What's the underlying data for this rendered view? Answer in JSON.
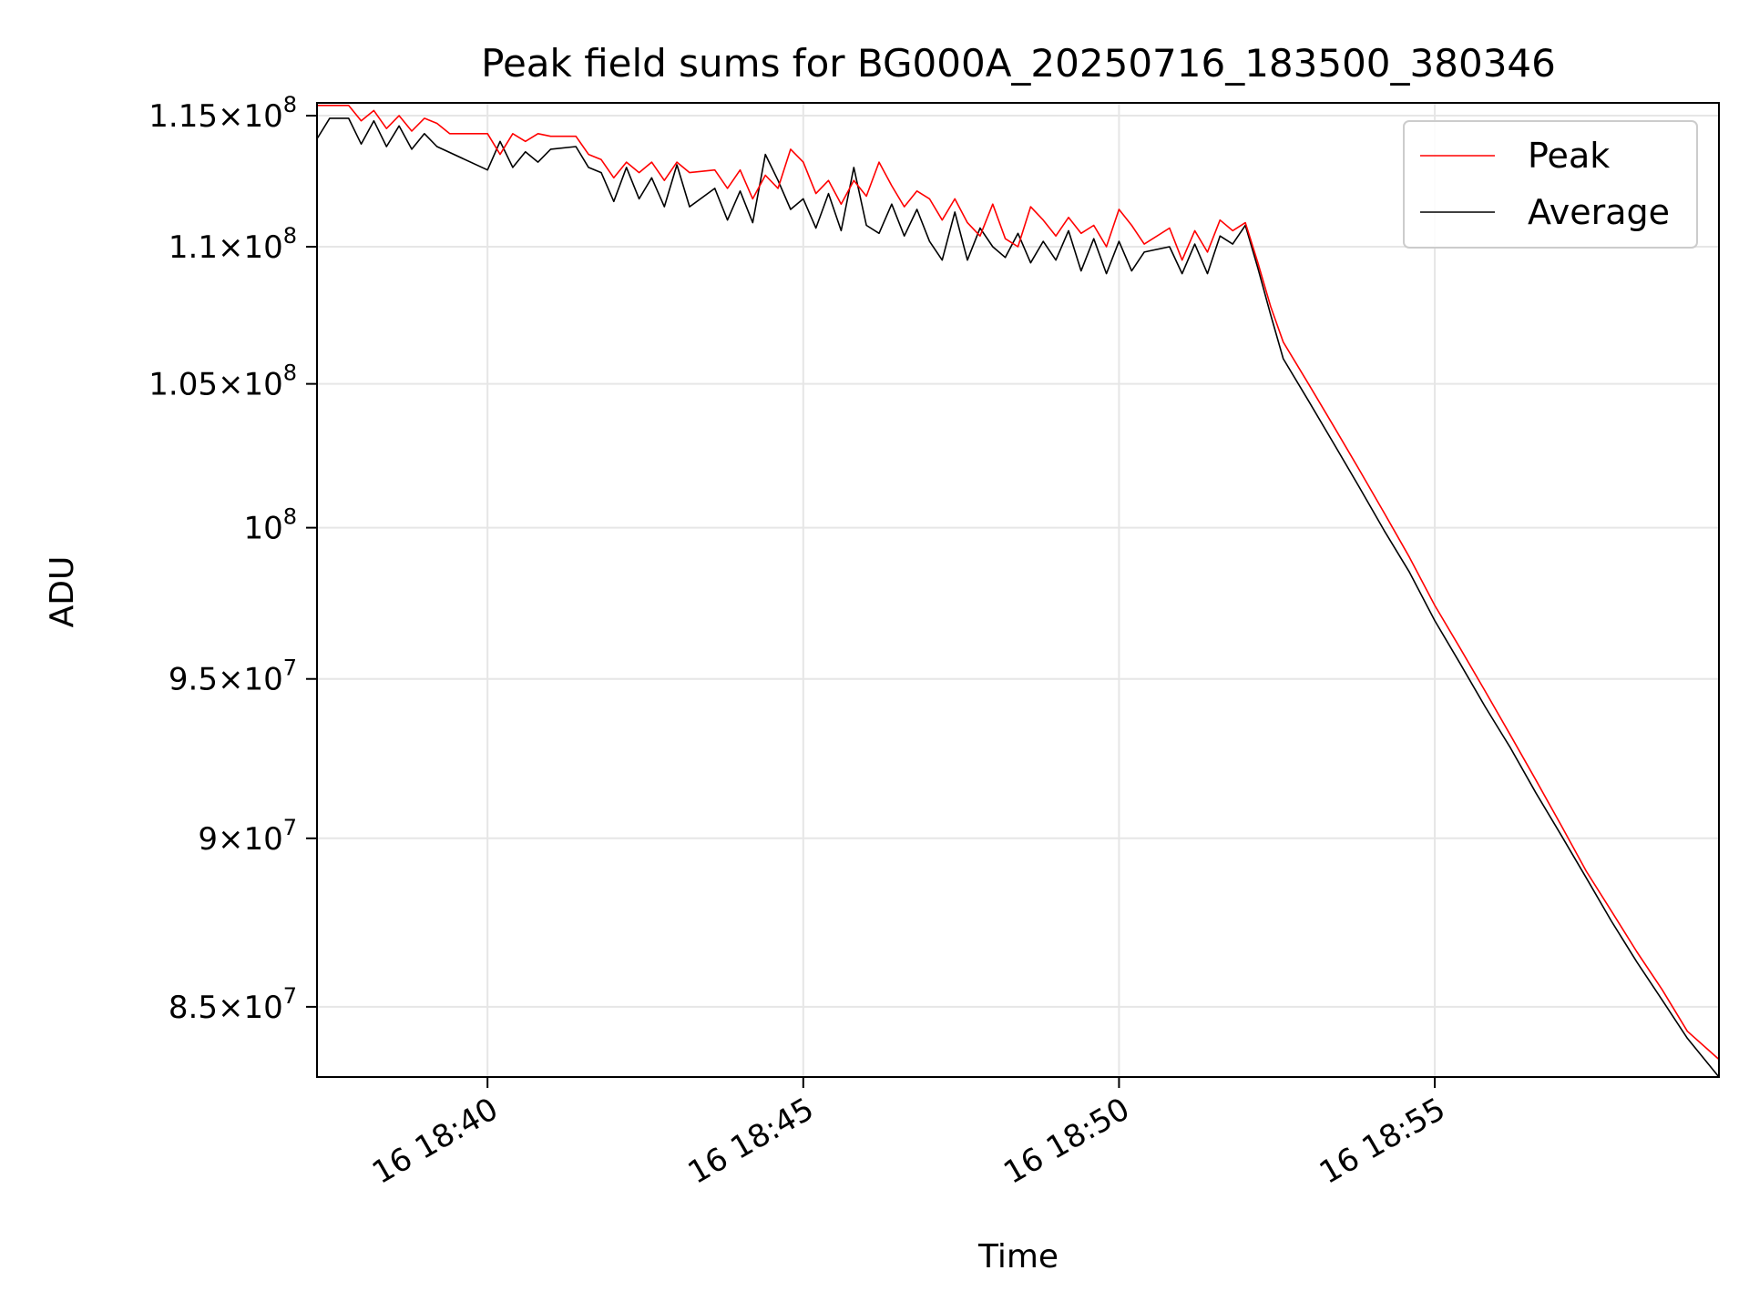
{
  "chart_data": {
    "type": "line",
    "title": "Peak field sums for BG000A_20250716_183500_380346",
    "xlabel": "Time",
    "ylabel": "ADU",
    "y_scale": "log",
    "xlim": [
      "2025-07-16 18:37:18",
      "2025-07-16 18:59:30"
    ],
    "ylim": [
      83000000,
      115500000
    ],
    "x_ticks": [
      {
        "value": "2025-07-16 18:40:00",
        "label": "16 18:40"
      },
      {
        "value": "2025-07-16 18:45:00",
        "label": "16 18:45"
      },
      {
        "value": "2025-07-16 18:50:00",
        "label": "16 18:50"
      },
      {
        "value": "2025-07-16 18:55:00",
        "label": "16 18:55"
      }
    ],
    "y_ticks": [
      {
        "value": 85000000,
        "mantissa": "8.5",
        "exponent": "7"
      },
      {
        "value": 90000000,
        "mantissa": "9",
        "exponent": "7"
      },
      {
        "value": 95000000,
        "mantissa": "9.5",
        "exponent": "7"
      },
      {
        "value": 100000000,
        "mantissa": "10",
        "exponent": "8"
      },
      {
        "value": 105000000,
        "mantissa": "1.05",
        "exponent": "8"
      },
      {
        "value": 110000000,
        "mantissa": "1.1",
        "exponent": "8"
      },
      {
        "value": 115000000,
        "mantissa": "1.15",
        "exponent": "8"
      }
    ],
    "grid": true,
    "legend_position": "top-right",
    "series": [
      {
        "name": "Peak",
        "color": "#ff0000",
        "x": [
          "2025-07-16 18:37:18",
          "2025-07-16 18:37:48",
          "2025-07-16 18:38:00",
          "2025-07-16 18:38:12",
          "2025-07-16 18:38:24",
          "2025-07-16 18:38:36",
          "2025-07-16 18:38:48",
          "2025-07-16 18:39:00",
          "2025-07-16 18:39:12",
          "2025-07-16 18:39:24",
          "2025-07-16 18:40:00",
          "2025-07-16 18:40:12",
          "2025-07-16 18:40:24",
          "2025-07-16 18:40:36",
          "2025-07-16 18:40:48",
          "2025-07-16 18:41:00",
          "2025-07-16 18:41:24",
          "2025-07-16 18:41:36",
          "2025-07-16 18:41:48",
          "2025-07-16 18:42:00",
          "2025-07-16 18:42:12",
          "2025-07-16 18:42:24",
          "2025-07-16 18:42:36",
          "2025-07-16 18:42:48",
          "2025-07-16 18:43:00",
          "2025-07-16 18:43:12",
          "2025-07-16 18:43:36",
          "2025-07-16 18:43:48",
          "2025-07-16 18:44:00",
          "2025-07-16 18:44:12",
          "2025-07-16 18:44:24",
          "2025-07-16 18:44:36",
          "2025-07-16 18:44:48",
          "2025-07-16 18:45:00",
          "2025-07-16 18:45:12",
          "2025-07-16 18:45:24",
          "2025-07-16 18:45:36",
          "2025-07-16 18:45:48",
          "2025-07-16 18:46:00",
          "2025-07-16 18:46:12",
          "2025-07-16 18:46:24",
          "2025-07-16 18:46:36",
          "2025-07-16 18:46:48",
          "2025-07-16 18:47:00",
          "2025-07-16 18:47:12",
          "2025-07-16 18:47:24",
          "2025-07-16 18:47:36",
          "2025-07-16 18:47:48",
          "2025-07-16 18:48:00",
          "2025-07-16 18:48:12",
          "2025-07-16 18:48:24",
          "2025-07-16 18:48:36",
          "2025-07-16 18:48:48",
          "2025-07-16 18:49:00",
          "2025-07-16 18:49:12",
          "2025-07-16 18:49:24",
          "2025-07-16 18:49:36",
          "2025-07-16 18:49:48",
          "2025-07-16 18:50:00",
          "2025-07-16 18:50:12",
          "2025-07-16 18:50:24",
          "2025-07-16 18:50:48",
          "2025-07-16 18:51:00",
          "2025-07-16 18:51:12",
          "2025-07-16 18:51:24",
          "2025-07-16 18:51:36",
          "2025-07-16 18:51:48",
          "2025-07-16 18:52:00",
          "2025-07-16 18:52:12",
          "2025-07-16 18:52:24",
          "2025-07-16 18:52:36",
          "2025-07-16 18:53:00",
          "2025-07-16 18:53:24",
          "2025-07-16 18:53:48",
          "2025-07-16 18:54:12",
          "2025-07-16 18:54:36",
          "2025-07-16 18:55:00",
          "2025-07-16 18:55:24",
          "2025-07-16 18:55:48",
          "2025-07-16 18:56:12",
          "2025-07-16 18:56:36",
          "2025-07-16 18:57:00",
          "2025-07-16 18:57:24",
          "2025-07-16 18:57:48",
          "2025-07-16 18:58:12",
          "2025-07-16 18:58:36",
          "2025-07-16 18:59:00",
          "2025-07-16 18:59:30"
        ],
        "y": [
          115400000,
          115400000,
          114800000,
          115200000,
          114500000,
          115000000,
          114400000,
          114900000,
          114700000,
          114300000,
          114300000,
          113500000,
          114300000,
          114000000,
          114300000,
          114200000,
          114200000,
          113500000,
          113300000,
          112600000,
          113200000,
          112800000,
          113200000,
          112500000,
          113200000,
          112800000,
          112900000,
          112200000,
          112900000,
          111800000,
          112700000,
          112200000,
          113700000,
          113200000,
          112000000,
          112500000,
          111600000,
          112500000,
          111900000,
          113200000,
          112300000,
          111500000,
          112100000,
          111800000,
          111000000,
          111800000,
          110900000,
          110400000,
          111600000,
          110300000,
          110000000,
          111500000,
          111000000,
          110400000,
          111100000,
          110500000,
          110800000,
          110000000,
          111400000,
          110800000,
          110100000,
          110700000,
          109500000,
          110600000,
          109800000,
          111000000,
          110600000,
          110900000,
          109400000,
          107800000,
          106500000,
          105000000,
          103500000,
          102000000,
          100500000,
          99000000,
          97400000,
          96000000,
          94600000,
          93200000,
          91800000,
          90400000,
          89000000,
          87800000,
          86600000,
          85500000,
          84300000,
          83500000
        ]
      },
      {
        "name": "Average",
        "color": "#000000",
        "x": [
          "2025-07-16 18:37:18",
          "2025-07-16 18:37:30",
          "2025-07-16 18:37:48",
          "2025-07-16 18:38:00",
          "2025-07-16 18:38:12",
          "2025-07-16 18:38:24",
          "2025-07-16 18:38:36",
          "2025-07-16 18:38:48",
          "2025-07-16 18:39:00",
          "2025-07-16 18:39:12",
          "2025-07-16 18:40:00",
          "2025-07-16 18:40:12",
          "2025-07-16 18:40:24",
          "2025-07-16 18:40:36",
          "2025-07-16 18:40:48",
          "2025-07-16 18:41:00",
          "2025-07-16 18:41:24",
          "2025-07-16 18:41:36",
          "2025-07-16 18:41:48",
          "2025-07-16 18:42:00",
          "2025-07-16 18:42:12",
          "2025-07-16 18:42:24",
          "2025-07-16 18:42:36",
          "2025-07-16 18:42:48",
          "2025-07-16 18:43:00",
          "2025-07-16 18:43:12",
          "2025-07-16 18:43:36",
          "2025-07-16 18:43:48",
          "2025-07-16 18:44:00",
          "2025-07-16 18:44:12",
          "2025-07-16 18:44:24",
          "2025-07-16 18:44:36",
          "2025-07-16 18:44:48",
          "2025-07-16 18:45:00",
          "2025-07-16 18:45:12",
          "2025-07-16 18:45:24",
          "2025-07-16 18:45:36",
          "2025-07-16 18:45:48",
          "2025-07-16 18:46:00",
          "2025-07-16 18:46:12",
          "2025-07-16 18:46:24",
          "2025-07-16 18:46:36",
          "2025-07-16 18:46:48",
          "2025-07-16 18:47:00",
          "2025-07-16 18:47:12",
          "2025-07-16 18:47:24",
          "2025-07-16 18:47:36",
          "2025-07-16 18:47:48",
          "2025-07-16 18:48:00",
          "2025-07-16 18:48:12",
          "2025-07-16 18:48:24",
          "2025-07-16 18:48:36",
          "2025-07-16 18:48:48",
          "2025-07-16 18:49:00",
          "2025-07-16 18:49:12",
          "2025-07-16 18:49:24",
          "2025-07-16 18:49:36",
          "2025-07-16 18:49:48",
          "2025-07-16 18:50:00",
          "2025-07-16 18:50:12",
          "2025-07-16 18:50:24",
          "2025-07-16 18:50:48",
          "2025-07-16 18:51:00",
          "2025-07-16 18:51:12",
          "2025-07-16 18:51:24",
          "2025-07-16 18:51:36",
          "2025-07-16 18:51:48",
          "2025-07-16 18:52:00",
          "2025-07-16 18:52:12",
          "2025-07-16 18:52:24",
          "2025-07-16 18:52:36",
          "2025-07-16 18:53:00",
          "2025-07-16 18:53:24",
          "2025-07-16 18:53:48",
          "2025-07-16 18:54:12",
          "2025-07-16 18:54:36",
          "2025-07-16 18:55:00",
          "2025-07-16 18:55:24",
          "2025-07-16 18:55:48",
          "2025-07-16 18:56:12",
          "2025-07-16 18:56:36",
          "2025-07-16 18:57:00",
          "2025-07-16 18:57:24",
          "2025-07-16 18:57:48",
          "2025-07-16 18:58:12",
          "2025-07-16 18:58:36",
          "2025-07-16 18:59:00",
          "2025-07-16 18:59:30"
        ],
        "y": [
          114100000,
          114900000,
          114900000,
          113900000,
          114800000,
          113800000,
          114600000,
          113700000,
          114300000,
          113800000,
          112900000,
          114000000,
          113000000,
          113600000,
          113200000,
          113700000,
          113800000,
          113000000,
          112800000,
          111700000,
          113000000,
          111800000,
          112600000,
          111500000,
          113100000,
          111500000,
          112200000,
          111000000,
          112100000,
          110900000,
          113500000,
          112500000,
          111400000,
          111800000,
          110700000,
          112000000,
          110600000,
          113000000,
          110800000,
          110500000,
          111600000,
          110400000,
          111400000,
          110200000,
          109500000,
          111300000,
          109500000,
          110700000,
          110000000,
          109600000,
          110500000,
          109400000,
          110200000,
          109500000,
          110600000,
          109100000,
          110300000,
          109000000,
          110200000,
          109100000,
          109800000,
          110000000,
          109000000,
          110100000,
          109000000,
          110400000,
          110100000,
          110800000,
          109200000,
          107500000,
          105900000,
          104400000,
          102900000,
          101400000,
          99900000,
          98500000,
          96900000,
          95500000,
          94100000,
          92800000,
          91400000,
          90100000,
          88800000,
          87500000,
          86300000,
          85200000,
          84100000,
          83000000
        ]
      }
    ]
  }
}
